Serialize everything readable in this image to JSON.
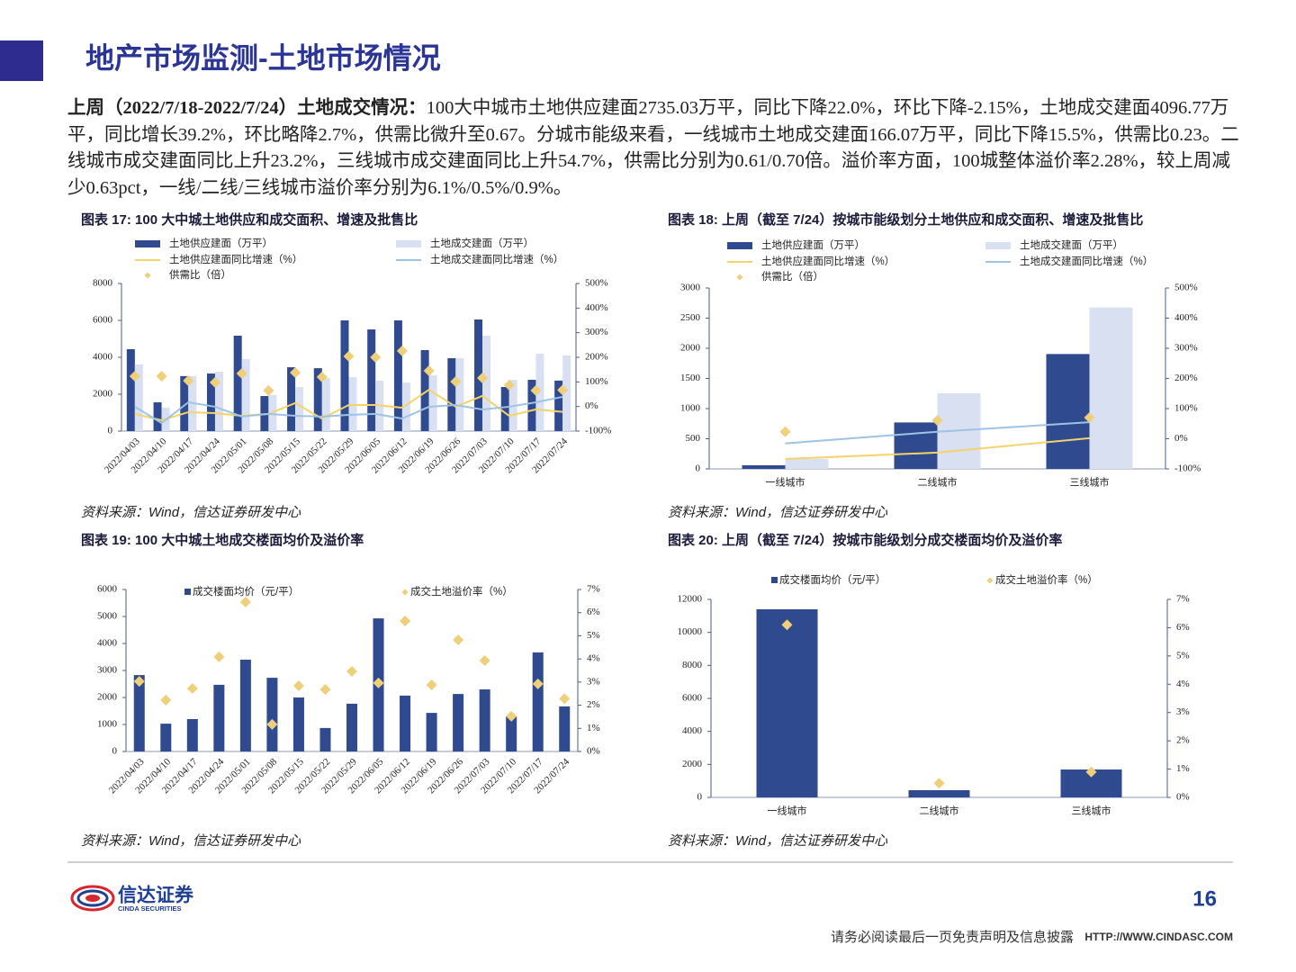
{
  "header": {
    "title": "地产市场监测-土地市场情况"
  },
  "summary": {
    "lead": "上周（2022/7/18-2022/7/24）土地成交情况：",
    "text": "100大中城市土地供应建面2735.03万平，同比下降22.0%，环比下降-2.15%，土地成交建面4096.77万平，同比增长39.2%，环比略降2.7%，供需比微升至0.67。分城市能级来看，一线城市土地成交建面166.07万平，同比下降15.5%，供需比0.23。二线城市成交建面同比上升23.2%，三线城市成交建面同比上升54.7%，供需比分别为0.61/0.70倍。溢价率方面，100城整体溢价率2.28%，较上周减少0.63pct，一线/二线/三线城市溢价率分别为6.1%/0.5%/0.9%。"
  },
  "chart_data": [
    {
      "type": "combo",
      "title": "图表 17: 100 大中城土地供应和成交面积、增速及批售比",
      "source": "资料来源：Wind，信达证券研发中心",
      "categories": [
        "2022/04/03",
        "2022/04/10",
        "2022/04/17",
        "2022/04/24",
        "2022/05/01",
        "2022/05/08",
        "2022/05/15",
        "2022/05/22",
        "2022/05/29",
        "2022/06/05",
        "2022/06/12",
        "2022/06/19",
        "2022/06/26",
        "2022/07/03",
        "2022/07/10",
        "2022/07/17",
        "2022/07/24"
      ],
      "series": [
        {
          "name": "土地供应建面（万平）",
          "type": "bar",
          "color": "#2f4a8e",
          "values": [
            4440,
            1560,
            2980,
            3120,
            5170,
            1900,
            3460,
            3410,
            6000,
            5510,
            6000,
            4390,
            3950,
            6050,
            2390,
            2780,
            2735.03
          ]
        },
        {
          "name": "土地成交建面（万平）",
          "type": "bar",
          "color": "#d9e0f1",
          "values": [
            3610,
            1270,
            2980,
            3220,
            3900,
            1950,
            2390,
            2880,
            2930,
            2730,
            2630,
            3020,
            3950,
            5170,
            2780,
            4200,
            4096.77
          ]
        },
        {
          "name": "土地供应建面同比增速（%）",
          "type": "line",
          "axis": "y2",
          "color": "#f5d36a",
          "values": [
            -0.3,
            -0.56,
            -0.23,
            -0.27,
            -0.38,
            -0.3,
            0.14,
            -0.49,
            0.06,
            0.06,
            -0.05,
            0.68,
            -0.01,
            0.43,
            -0.38,
            -0.12,
            -0.22
          ]
        },
        {
          "name": "土地成交建面同比增速（%）",
          "type": "line",
          "axis": "y2",
          "color": "#9dc3e6",
          "values": [
            -0.01,
            -0.67,
            0.17,
            -0.01,
            -0.41,
            -0.3,
            -0.38,
            -0.41,
            -0.34,
            -0.3,
            -0.49,
            -0.01,
            0.06,
            -0.12,
            -0.01,
            0.17,
            0.392
          ]
        },
        {
          "name": "供需比（倍）",
          "type": "scatter",
          "axis": "y2",
          "color": "#f0cf7a",
          "values": [
            1.23,
            1.23,
            1.05,
            0.98,
            1.34,
            0.65,
            1.38,
            1.2,
            2.04,
            2.0,
            2.26,
            1.45,
            1.01,
            1.16,
            0.87,
            0.65,
            0.67
          ]
        }
      ],
      "ylim": [
        0,
        8000
      ],
      "yticks": [
        0,
        2000,
        4000,
        6000,
        8000
      ],
      "y2lim": [
        -1,
        5
      ],
      "y2ticks": [
        {
          "value": -1,
          "label": "-100%"
        },
        {
          "value": 0,
          "label": "0%"
        },
        {
          "value": 1,
          "label": "100%"
        },
        {
          "value": 2,
          "label": "200%"
        },
        {
          "value": 3,
          "label": "300%"
        },
        {
          "value": 4,
          "label": "400%"
        },
        {
          "value": 5,
          "label": "500%"
        }
      ]
    },
    {
      "type": "combo",
      "title": "图表 18: 上周（截至 7/24）按城市能级划分土地供应和成交面积、增速及批售比",
      "source": "资料来源：Wind，信达证券研发中心",
      "categories": [
        "一线城市",
        "二线城市",
        "三线城市"
      ],
      "series": [
        {
          "name": "土地供应建面（万平）",
          "type": "bar",
          "color": "#2f4a8e",
          "values": [
            60,
            770,
            1905
          ]
        },
        {
          "name": "土地成交建面（万平）",
          "type": "bar",
          "color": "#d9e0f1",
          "values": [
            166.07,
            1254,
            2677
          ]
        },
        {
          "name": "土地供应建面同比增速（%）",
          "type": "line",
          "axis": "y2",
          "color": "#f5d36a",
          "values": [
            -0.67,
            -0.46,
            0.02
          ]
        },
        {
          "name": "土地成交建面同比增速（%）",
          "type": "line",
          "axis": "y2",
          "color": "#9dc3e6",
          "values": [
            -0.155,
            0.232,
            0.547
          ]
        },
        {
          "name": "供需比（倍）",
          "type": "scatter",
          "axis": "y2",
          "color": "#f0cf7a",
          "values": [
            0.23,
            0.61,
            0.7
          ]
        }
      ],
      "ylim": [
        0,
        3000
      ],
      "yticks": [
        0,
        500,
        1000,
        1500,
        2000,
        2500,
        3000
      ],
      "y2lim": [
        -1,
        5
      ],
      "y2ticks": [
        {
          "value": -1,
          "label": "-100%"
        },
        {
          "value": 0,
          "label": "0%"
        },
        {
          "value": 1,
          "label": "100%"
        },
        {
          "value": 2,
          "label": "200%"
        },
        {
          "value": 3,
          "label": "300%"
        },
        {
          "value": 4,
          "label": "400%"
        },
        {
          "value": 5,
          "label": "500%"
        }
      ]
    },
    {
      "type": "combo",
      "title": "图表 19: 100 大中城土地成交楼面均价及溢价率",
      "source": "资料来源：Wind，信达证券研发中心",
      "categories": [
        "2022/04/03",
        "2022/04/10",
        "2022/04/17",
        "2022/04/24",
        "2022/05/01",
        "2022/05/08",
        "2022/05/15",
        "2022/05/22",
        "2022/05/29",
        "2022/06/05",
        "2022/06/12",
        "2022/06/19",
        "2022/06/26",
        "2022/07/03",
        "2022/07/10",
        "2022/07/17",
        "2022/07/24"
      ],
      "series": [
        {
          "name": "成交楼面均价（元/平）",
          "type": "bar",
          "color": "#2f4a8e",
          "values": [
            2830,
            1030,
            1200,
            2470,
            3400,
            2730,
            2000,
            870,
            1770,
            4930,
            2070,
            1430,
            2130,
            2300,
            1300,
            3670,
            1670
          ]
        },
        {
          "name": "成交土地溢价率（%）",
          "type": "scatter",
          "axis": "y2",
          "color": "#f0cf7a",
          "values": [
            3.03,
            2.22,
            2.72,
            4.09,
            6.46,
            1.17,
            2.84,
            2.68,
            3.46,
            2.96,
            5.64,
            2.88,
            4.82,
            3.93,
            1.52,
            2.92,
            2.28
          ]
        }
      ],
      "ylim": [
        0,
        6000
      ],
      "yticks": [
        0,
        1000,
        2000,
        3000,
        4000,
        5000,
        6000
      ],
      "y2lim": [
        0,
        7
      ],
      "y2ticks": [
        {
          "value": 0,
          "label": "0%"
        },
        {
          "value": 1,
          "label": "1%"
        },
        {
          "value": 2,
          "label": "2%"
        },
        {
          "value": 3,
          "label": "3%"
        },
        {
          "value": 4,
          "label": "4%"
        },
        {
          "value": 5,
          "label": "5%"
        },
        {
          "value": 6,
          "label": "6%"
        },
        {
          "value": 7,
          "label": "7%"
        }
      ]
    },
    {
      "type": "combo",
      "title": "图表 20: 上周（截至 7/24）按城市能级划分成交楼面均价及溢价率",
      "source": "资料来源：Wind，信达证券研发中心",
      "categories": [
        "一线城市",
        "二线城市",
        "三线城市"
      ],
      "series": [
        {
          "name": "成交楼面均价（元/平）",
          "type": "bar",
          "color": "#2f4a8e",
          "values": [
            11400,
            436,
            1690
          ]
        },
        {
          "name": "成交土地溢价率（%）",
          "type": "scatter",
          "axis": "y2",
          "color": "#f0cf7a",
          "values": [
            6.1,
            0.5,
            0.9
          ]
        }
      ],
      "ylim": [
        0,
        12000
      ],
      "yticks": [
        0,
        2000,
        4000,
        6000,
        8000,
        10000,
        12000
      ],
      "y2lim": [
        0,
        7
      ],
      "y2ticks": [
        {
          "value": 0,
          "label": "0%"
        },
        {
          "value": 1,
          "label": "1%"
        },
        {
          "value": 2,
          "label": "2%"
        },
        {
          "value": 3,
          "label": "3%"
        },
        {
          "value": 4,
          "label": "4%"
        },
        {
          "value": 5,
          "label": "5%"
        },
        {
          "value": 6,
          "label": "6%"
        },
        {
          "value": 7,
          "label": "7%"
        }
      ]
    }
  ],
  "footer": {
    "logo_cn": "信达证券",
    "logo_en": "CINDA SECURITIES",
    "page": "16",
    "disclaimer": "请务必阅读最后一页免责声明及信息披露",
    "url": "HTTP://WWW.CINDASC.COM"
  }
}
